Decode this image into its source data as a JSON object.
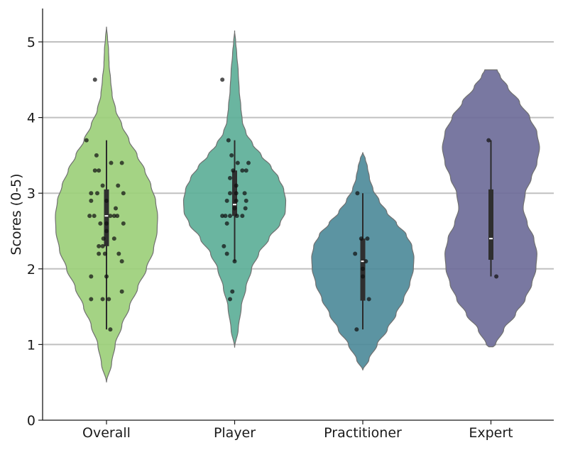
{
  "chart_data": {
    "type": "violin",
    "ylabel": "Scores (0-5)",
    "ylim": [
      0,
      5.45
    ],
    "yticks": [
      0,
      1,
      2,
      3,
      4,
      5
    ],
    "grid": {
      "y": true,
      "gridlines_at": [
        1,
        2,
        3,
        4,
        5
      ]
    },
    "categories": [
      {
        "name": "Overall",
        "color": "#9ccf7a",
        "median": 2.7,
        "q1": 2.3,
        "q3": 3.05,
        "whisker_low": 1.2,
        "whisker_high": 3.7,
        "density_range": [
          0.5,
          5.2
        ],
        "density_profile": [
          [
            0.5,
            0
          ],
          [
            0.75,
            0.1
          ],
          [
            1.0,
            0.17
          ],
          [
            1.25,
            0.3
          ],
          [
            1.5,
            0.45
          ],
          [
            1.75,
            0.61
          ],
          [
            2.0,
            0.78
          ],
          [
            2.25,
            0.92
          ],
          [
            2.5,
            0.99
          ],
          [
            2.7,
            1.0
          ],
          [
            2.9,
            0.96
          ],
          [
            3.1,
            0.87
          ],
          [
            3.3,
            0.75
          ],
          [
            3.5,
            0.6
          ],
          [
            3.7,
            0.44
          ],
          [
            3.9,
            0.3
          ],
          [
            4.1,
            0.18
          ],
          [
            4.3,
            0.11
          ],
          [
            4.5,
            0.08
          ],
          [
            4.7,
            0.05
          ],
          [
            4.9,
            0.04
          ],
          [
            5.05,
            0.02
          ],
          [
            5.2,
            0
          ]
        ],
        "points": [
          {
            "dx": -0.26,
            "y": 3.7
          },
          {
            "dx": 0.06,
            "y": 3.4
          },
          {
            "dx": -0.15,
            "y": 3.3
          },
          {
            "dx": 0.2,
            "y": 3.4
          },
          {
            "dx": -0.13,
            "y": 3.5
          },
          {
            "dx": -0.1,
            "y": 3.3
          },
          {
            "dx": -0.2,
            "y": 3.0
          },
          {
            "dx": -0.05,
            "y": 3.1
          },
          {
            "dx": 0.15,
            "y": 3.1
          },
          {
            "dx": -0.12,
            "y": 3.0
          },
          {
            "dx": 0.22,
            "y": 3.0
          },
          {
            "dx": -0.2,
            "y": 2.9
          },
          {
            "dx": 0.0,
            "y": 2.9
          },
          {
            "dx": -0.22,
            "y": 2.7
          },
          {
            "dx": -0.16,
            "y": 2.7
          },
          {
            "dx": 0.05,
            "y": 2.7
          },
          {
            "dx": 0.1,
            "y": 2.7
          },
          {
            "dx": 0.14,
            "y": 2.7
          },
          {
            "dx": 0.0,
            "y": 2.6
          },
          {
            "dx": 0.22,
            "y": 2.6
          },
          {
            "dx": -0.08,
            "y": 2.6
          },
          {
            "dx": 0.12,
            "y": 2.8
          },
          {
            "dx": -0.04,
            "y": 2.4
          },
          {
            "dx": 0.1,
            "y": 2.4
          },
          {
            "dx": -0.1,
            "y": 2.3
          },
          {
            "dx": -0.05,
            "y": 2.3
          },
          {
            "dx": -0.1,
            "y": 2.2
          },
          {
            "dx": -0.02,
            "y": 2.2
          },
          {
            "dx": 0.16,
            "y": 2.2
          },
          {
            "dx": 0.2,
            "y": 2.1
          },
          {
            "dx": -0.2,
            "y": 1.9
          },
          {
            "dx": 0.0,
            "y": 1.9
          },
          {
            "dx": -0.2,
            "y": 1.6
          },
          {
            "dx": -0.05,
            "y": 1.6
          },
          {
            "dx": 0.03,
            "y": 1.6
          },
          {
            "dx": 0.2,
            "y": 1.7
          },
          {
            "dx": 0.05,
            "y": 1.2
          },
          {
            "dx": -0.15,
            "y": 4.5
          },
          {
            "dx": 0.0,
            "y": 2.5
          }
        ]
      },
      {
        "name": "Player",
        "color": "#5daf98",
        "median": 2.85,
        "q1": 2.7,
        "q3": 3.3,
        "whisker_low": 2.1,
        "whisker_high": 3.7,
        "density_range": [
          0.96,
          5.15
        ],
        "density_profile": [
          [
            0.96,
            0
          ],
          [
            1.2,
            0.07
          ],
          [
            1.5,
            0.13
          ],
          [
            1.75,
            0.22
          ],
          [
            2.0,
            0.33
          ],
          [
            2.2,
            0.47
          ],
          [
            2.4,
            0.67
          ],
          [
            2.6,
            0.89
          ],
          [
            2.75,
            0.99
          ],
          [
            2.9,
            1.0
          ],
          [
            3.05,
            0.96
          ],
          [
            3.2,
            0.86
          ],
          [
            3.35,
            0.71
          ],
          [
            3.5,
            0.52
          ],
          [
            3.65,
            0.35
          ],
          [
            3.8,
            0.22
          ],
          [
            3.95,
            0.15
          ],
          [
            4.15,
            0.12
          ],
          [
            4.35,
            0.09
          ],
          [
            4.6,
            0.07
          ],
          [
            4.85,
            0.04
          ],
          [
            5.0,
            0.02
          ],
          [
            5.15,
            0
          ]
        ],
        "points": [
          {
            "dx": -0.08,
            "y": 3.7
          },
          {
            "dx": -0.04,
            "y": 3.5
          },
          {
            "dx": -0.06,
            "y": 3.2
          },
          {
            "dx": -0.02,
            "y": 3.3
          },
          {
            "dx": 0.04,
            "y": 3.4
          },
          {
            "dx": 0.1,
            "y": 3.3
          },
          {
            "dx": 0.15,
            "y": 3.3
          },
          {
            "dx": 0.18,
            "y": 3.4
          },
          {
            "dx": 0.02,
            "y": 3.1
          },
          {
            "dx": -0.06,
            "y": 3.0
          },
          {
            "dx": 0.02,
            "y": 3.0
          },
          {
            "dx": 0.13,
            "y": 3.0
          },
          {
            "dx": -0.1,
            "y": 2.9
          },
          {
            "dx": 0.02,
            "y": 2.9
          },
          {
            "dx": 0.15,
            "y": 2.9
          },
          {
            "dx": -0.16,
            "y": 2.7
          },
          {
            "dx": -0.12,
            "y": 2.7
          },
          {
            "dx": -0.06,
            "y": 2.7
          },
          {
            "dx": 0.03,
            "y": 2.7
          },
          {
            "dx": 0.1,
            "y": 2.7
          },
          {
            "dx": -0.1,
            "y": 2.6
          },
          {
            "dx": 0.0,
            "y": 2.8
          },
          {
            "dx": 0.14,
            "y": 2.8
          },
          {
            "dx": -0.14,
            "y": 2.3
          },
          {
            "dx": -0.1,
            "y": 2.2
          },
          {
            "dx": 0.0,
            "y": 2.1
          },
          {
            "dx": -0.03,
            "y": 1.7
          },
          {
            "dx": -0.06,
            "y": 1.6
          },
          {
            "dx": -0.16,
            "y": 4.5
          }
        ]
      },
      {
        "name": "Practitioner",
        "color": "#4e8b9a",
        "median": 2.1,
        "q1": 1.58,
        "q3": 2.4,
        "whisker_low": 1.2,
        "whisker_high": 3.0,
        "density_range": [
          0.66,
          3.54
        ],
        "density_profile": [
          [
            0.66,
            0
          ],
          [
            0.8,
            0.12
          ],
          [
            1.0,
            0.28
          ],
          [
            1.2,
            0.48
          ],
          [
            1.4,
            0.65
          ],
          [
            1.6,
            0.8
          ],
          [
            1.8,
            0.92
          ],
          [
            2.0,
            0.99
          ],
          [
            2.15,
            1.0
          ],
          [
            2.3,
            0.96
          ],
          [
            2.45,
            0.85
          ],
          [
            2.6,
            0.66
          ],
          [
            2.75,
            0.47
          ],
          [
            2.9,
            0.32
          ],
          [
            3.05,
            0.2
          ],
          [
            3.2,
            0.13
          ],
          [
            3.35,
            0.09
          ],
          [
            3.45,
            0.05
          ],
          [
            3.54,
            0
          ]
        ],
        "points": [
          {
            "dx": -0.07,
            "y": 3.0
          },
          {
            "dx": -0.1,
            "y": 2.2
          },
          {
            "dx": -0.02,
            "y": 2.4
          },
          {
            "dx": 0.06,
            "y": 2.4
          },
          {
            "dx": 0.0,
            "y": 1.9
          },
          {
            "dx": 0.04,
            "y": 2.1
          },
          {
            "dx": 0.08,
            "y": 1.6
          },
          {
            "dx": -0.08,
            "y": 1.2
          },
          {
            "dx": 0.0,
            "y": 2.0
          }
        ]
      },
      {
        "name": "Expert",
        "color": "#6e6c99",
        "median": 2.4,
        "q1": 2.12,
        "q3": 3.05,
        "whisker_low": 1.9,
        "whisker_high": 3.7,
        "density_range": [
          0.97,
          4.63
        ],
        "density_profile": [
          [
            0.97,
            0.04
          ],
          [
            1.0,
            0.09
          ],
          [
            1.2,
            0.25
          ],
          [
            1.4,
            0.48
          ],
          [
            1.6,
            0.67
          ],
          [
            1.8,
            0.8
          ],
          [
            2.0,
            0.88
          ],
          [
            2.2,
            0.9
          ],
          [
            2.4,
            0.84
          ],
          [
            2.6,
            0.71
          ],
          [
            2.8,
            0.63
          ],
          [
            3.0,
            0.67
          ],
          [
            3.2,
            0.79
          ],
          [
            3.4,
            0.9
          ],
          [
            3.6,
            0.95
          ],
          [
            3.8,
            0.9
          ],
          [
            4.0,
            0.76
          ],
          [
            4.2,
            0.56
          ],
          [
            4.4,
            0.33
          ],
          [
            4.55,
            0.18
          ],
          [
            4.63,
            0.12
          ]
        ],
        "points": [
          {
            "dx": -0.03,
            "y": 3.7
          },
          {
            "dx": 0.07,
            "y": 1.9
          }
        ]
      }
    ]
  }
}
